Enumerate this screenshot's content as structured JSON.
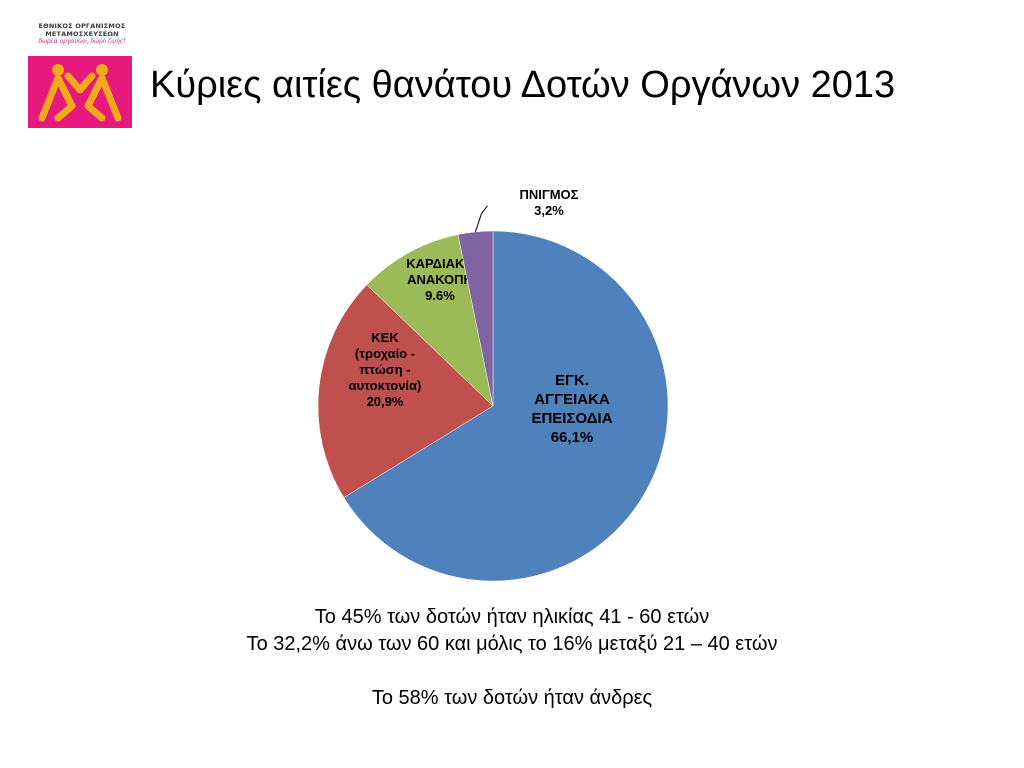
{
  "logo": {
    "line1": "ΕΘΝΙΚΟΣ ΟΡΓΑΝΙΣΜΟΣ",
    "line2": "ΜΕΤΑΜΟΣΧΕΥΣΕΩΝ",
    "slogan": "δωρεά οργάνων, δώρο ζωής!",
    "colors": {
      "bg": "#e6197d",
      "accent": "#f4a81c"
    }
  },
  "title": "Κύριες αιτίες θανάτου Δοτών Οργάνων 2013",
  "chart_data": {
    "type": "pie",
    "title": "Κύριες αιτίες θανάτου Δοτών Οργάνων 2013",
    "start_angle_deg": 0,
    "direction": "clockwise",
    "slices": [
      {
        "lines": [
          "ΕΓΚ.",
          "ΑΓΓΕΙΑΚΑ",
          "ΕΠΕΙΣΟΔΙΑ",
          "66,1%"
        ],
        "value": 66.1,
        "color": "#4f81bd"
      },
      {
        "lines": [
          "ΚΕΚ",
          "(τροχαίο -",
          "πτώση -",
          "αυτοκτονία)",
          "20,9%"
        ],
        "value": 20.9,
        "color": "#c0504d"
      },
      {
        "lines": [
          "ΚΑΡΔΙΑΚΗ",
          "ΑΝΑΚΟΠΗ",
          "9.6%"
        ],
        "value": 9.6,
        "color": "#9bbb59"
      },
      {
        "lines": [
          "ΠΝΙΓΜΟΣ",
          "3,2%"
        ],
        "value": 3.2,
        "color": "#8064a2"
      }
    ]
  },
  "notes": [
    "Το 45% των δοτών ήταν ηλικίας 41 - 60 ετών",
    "Το 32,2% άνω των 60 και μόλις το 16% μεταξύ 21 – 40 ετών",
    "",
    "Το 58% των δοτών ήταν άνδρες"
  ]
}
